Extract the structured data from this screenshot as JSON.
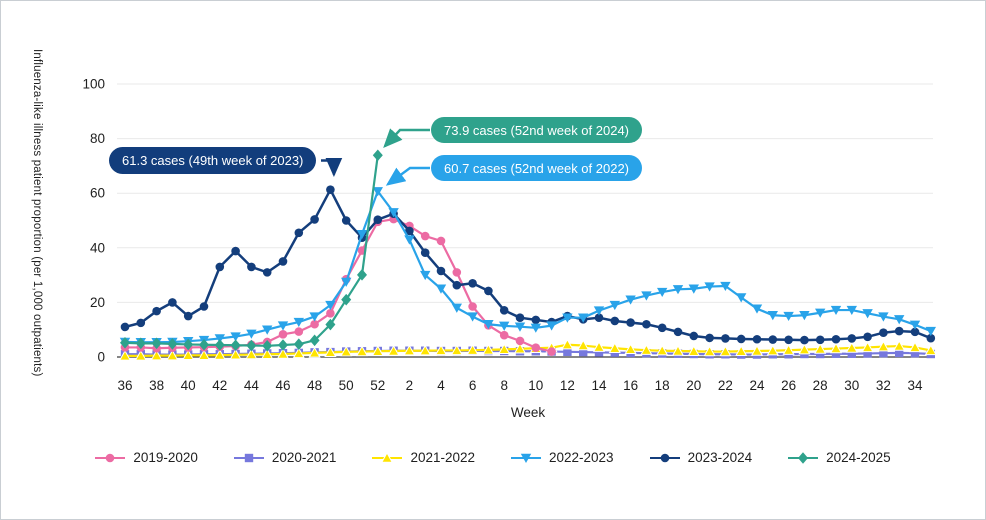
{
  "y_axis": {
    "label": "Influenza-like illness patient proportion (per 1,000 outpatients)",
    "ticks": [
      0,
      20,
      40,
      60,
      80,
      100
    ]
  },
  "x_axis": {
    "label": "Week",
    "shown_tick_labels": [
      36,
      38,
      40,
      42,
      44,
      46,
      48,
      50,
      52,
      2,
      4,
      6,
      8,
      10,
      12,
      14,
      16,
      18,
      20,
      22,
      24,
      26,
      28,
      30,
      32,
      34
    ]
  },
  "callouts": [
    {
      "text": "61.3 cases (49th week of 2023)",
      "bg": "#123d7c",
      "series": "2023-2024",
      "week_index": 13
    },
    {
      "text": "73.9 cases (52nd week of 2024)",
      "bg": "#2fa28c",
      "series": "2024-2025",
      "week_index": 16
    },
    {
      "text": "60.7 cases (52nd week of 2022)",
      "bg": "#29a3e9",
      "series": "2022-2023",
      "week_index": 16
    }
  ],
  "colors": {
    "grid": "#e9e9e9",
    "axis": "#3c3c3c",
    "text": "#1f1f1f"
  },
  "chart_data": {
    "type": "line",
    "title": "",
    "xlabel": "Week",
    "ylabel": "Influenza-like illness patient proportion (per 1,000 outpatients)",
    "ylim": [
      0,
      100
    ],
    "grid": "horizontal only",
    "legend_position": "bottom center",
    "x_weeks": [
      36,
      37,
      38,
      39,
      40,
      41,
      42,
      43,
      44,
      45,
      46,
      47,
      48,
      49,
      50,
      51,
      52,
      1,
      2,
      3,
      4,
      5,
      6,
      7,
      8,
      9,
      10,
      11,
      12,
      13,
      14,
      15,
      16,
      17,
      18,
      19,
      20,
      21,
      22,
      23,
      24,
      25,
      26,
      27,
      28,
      29,
      30,
      31,
      32,
      33,
      34,
      35
    ],
    "series": [
      {
        "name": "2019-2020",
        "color": "#ec6ba3",
        "marker": "circle",
        "values": [
          3.5,
          3.5,
          3.2,
          3.4,
          3.5,
          3.6,
          3.8,
          4.0,
          4.5,
          5.5,
          8.3,
          9.3,
          12.0,
          16.0,
          28.5,
          39.0,
          49.5,
          50.5,
          48.0,
          44.3,
          42.5,
          31.0,
          18.5,
          11.6,
          8.0,
          5.9,
          3.4,
          2.0,
          null,
          null,
          null,
          null,
          null,
          null,
          null,
          null,
          null,
          null,
          null,
          null,
          null,
          null,
          null,
          null,
          null,
          null,
          null,
          null,
          null,
          null,
          null,
          null
        ]
      },
      {
        "name": "2020-2021",
        "color": "#7678dd",
        "marker": "square",
        "values": [
          1.0,
          1.0,
          0.9,
          0.9,
          0.9,
          1.0,
          1.0,
          1.1,
          1.2,
          1.3,
          1.4,
          1.5,
          1.7,
          1.8,
          2.0,
          2.1,
          2.2,
          2.3,
          2.3,
          2.3,
          2.2,
          2.2,
          2.3,
          2.2,
          2.2,
          2.1,
          2.1,
          2.0,
          1.9,
          1.8,
          1.7,
          1.6,
          1.5,
          1.4,
          1.3,
          1.2,
          1.1,
          1.0,
          1.0,
          0.9,
          0.9,
          1.0,
          1.0,
          1.1,
          1.1,
          1.2,
          1.2,
          1.3,
          1.4,
          1.5,
          1.4,
          1.1
        ]
      },
      {
        "name": "2021-2022",
        "color": "#ffe400",
        "marker": "triangle-up",
        "values": [
          0.4,
          0.4,
          0.5,
          0.5,
          0.6,
          0.6,
          0.7,
          0.8,
          0.9,
          1.0,
          1.1,
          1.3,
          1.5,
          1.7,
          1.9,
          2.0,
          2.1,
          2.2,
          2.3,
          2.3,
          2.4,
          2.4,
          2.5,
          2.6,
          2.8,
          3.0,
          3.2,
          3.4,
          4.5,
          4.2,
          3.6,
          3.2,
          2.8,
          2.5,
          2.3,
          2.2,
          2.1,
          2.0,
          2.0,
          2.1,
          2.2,
          2.3,
          2.5,
          2.7,
          2.9,
          3.1,
          3.3,
          3.5,
          3.8,
          4.0,
          3.5,
          2.4
        ]
      },
      {
        "name": "2022-2023",
        "color": "#29a3e9",
        "marker": "triangle-down",
        "values": [
          5.5,
          5.4,
          5.4,
          5.5,
          5.8,
          6.2,
          6.8,
          7.5,
          8.5,
          10.0,
          11.5,
          12.8,
          14.8,
          19.0,
          27.5,
          45.0,
          60.7,
          53.0,
          43.0,
          30.0,
          25.0,
          18.0,
          14.8,
          12.0,
          11.4,
          11.1,
          10.7,
          11.5,
          14.4,
          14.4,
          17.0,
          19.0,
          21.0,
          22.5,
          23.8,
          24.8,
          25.0,
          25.8,
          26.0,
          21.8,
          17.7,
          15.3,
          15.0,
          15.3,
          16.2,
          17.2,
          17.2,
          16.0,
          14.8,
          13.8,
          11.8,
          9.5
        ]
      },
      {
        "name": "2023-2024",
        "color": "#143e7c",
        "marker": "circle",
        "values": [
          11.0,
          12.5,
          16.8,
          20.0,
          15.0,
          18.5,
          33.0,
          38.8,
          33.0,
          31.0,
          35.0,
          45.5,
          50.4,
          61.3,
          50.0,
          43.7,
          50.3,
          52.5,
          46.2,
          38.2,
          31.5,
          26.3,
          27.0,
          24.2,
          17.1,
          14.4,
          13.6,
          12.8,
          15.0,
          13.8,
          14.4,
          13.2,
          12.6,
          12.0,
          10.7,
          9.2,
          7.7,
          7.0,
          6.8,
          6.6,
          6.5,
          6.4,
          6.3,
          6.2,
          6.3,
          6.5,
          6.8,
          7.4,
          8.9,
          9.5,
          9.2,
          6.9
        ]
      },
      {
        "name": "2024-2025",
        "color": "#2fa28c",
        "marker": "diamond",
        "values": [
          5.2,
          5.0,
          5.0,
          4.8,
          4.6,
          4.5,
          4.4,
          4.3,
          4.2,
          4.1,
          4.4,
          4.7,
          6.1,
          11.9,
          21.0,
          30.1,
          73.9,
          null,
          null,
          null,
          null,
          null,
          null,
          null,
          null,
          null,
          null,
          null,
          null,
          null,
          null,
          null,
          null,
          null,
          null,
          null,
          null,
          null,
          null,
          null,
          null,
          null,
          null,
          null,
          null,
          null,
          null,
          null,
          null,
          null,
          null,
          null
        ]
      }
    ]
  }
}
